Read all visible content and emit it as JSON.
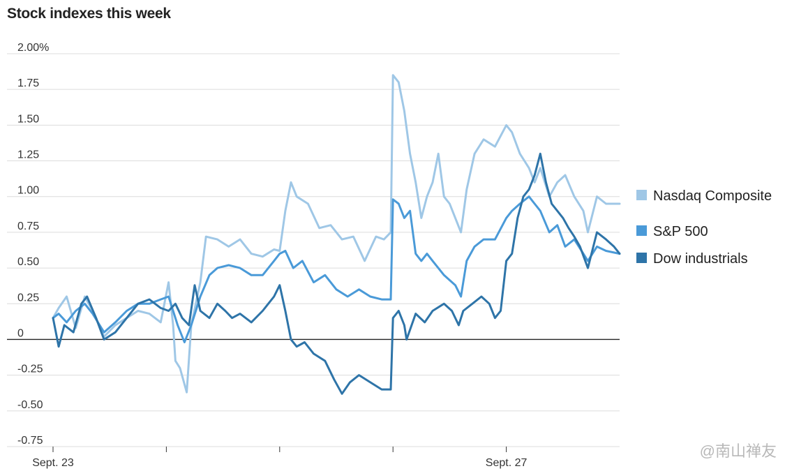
{
  "title": "Stock indexes this week",
  "watermark": "@南山禅友",
  "chart_data": {
    "type": "line",
    "title": "Stock indexes this week",
    "xlabel": "",
    "ylabel": "",
    "x_range": [
      0,
      5
    ],
    "ylim": [
      -0.75,
      2.0
    ],
    "y_ticks": [
      2.0,
      1.75,
      1.5,
      1.25,
      1.0,
      0.75,
      0.5,
      0.25,
      0,
      -0.25,
      -0.5,
      -0.75
    ],
    "y_tick_labels": [
      "2.00%",
      "1.75",
      "1.50",
      "1.25",
      "1.00",
      "0.75",
      "0.50",
      "0.25",
      "0",
      "-0.25",
      "-0.50",
      "-0.75"
    ],
    "x_ticks": [
      {
        "x": 0,
        "label": "Sept. 23"
      },
      {
        "x": 1,
        "label": ""
      },
      {
        "x": 2,
        "label": ""
      },
      {
        "x": 3,
        "label": ""
      },
      {
        "x": 4,
        "label": "Sept. 27"
      }
    ],
    "grid": true,
    "legend": "right",
    "series": [
      {
        "name": "Nasdaq Composite",
        "color": "#9fc7e6",
        "points": [
          [
            0,
            0.15
          ],
          [
            0.05,
            0.22
          ],
          [
            0.12,
            0.3
          ],
          [
            0.2,
            0.08
          ],
          [
            0.28,
            0.3
          ],
          [
            0.35,
            0.2
          ],
          [
            0.45,
            0.02
          ],
          [
            0.55,
            0.1
          ],
          [
            0.65,
            0.15
          ],
          [
            0.75,
            0.2
          ],
          [
            0.85,
            0.18
          ],
          [
            0.95,
            0.12
          ],
          [
            1.02,
            0.4
          ],
          [
            1.06,
            0.1
          ],
          [
            1.08,
            -0.15
          ],
          [
            1.12,
            -0.2
          ],
          [
            1.18,
            -0.37
          ],
          [
            1.22,
            0.1
          ],
          [
            1.3,
            0.4
          ],
          [
            1.35,
            0.72
          ],
          [
            1.45,
            0.7
          ],
          [
            1.55,
            0.65
          ],
          [
            1.65,
            0.7
          ],
          [
            1.75,
            0.6
          ],
          [
            1.85,
            0.58
          ],
          [
            1.95,
            0.63
          ],
          [
            2.0,
            0.62
          ],
          [
            2.05,
            0.9
          ],
          [
            2.1,
            1.1
          ],
          [
            2.15,
            1.0
          ],
          [
            2.25,
            0.95
          ],
          [
            2.35,
            0.78
          ],
          [
            2.45,
            0.8
          ],
          [
            2.55,
            0.7
          ],
          [
            2.65,
            0.72
          ],
          [
            2.75,
            0.55
          ],
          [
            2.85,
            0.72
          ],
          [
            2.92,
            0.7
          ],
          [
            2.98,
            0.75
          ],
          [
            3.0,
            1.85
          ],
          [
            3.05,
            1.8
          ],
          [
            3.1,
            1.6
          ],
          [
            3.15,
            1.3
          ],
          [
            3.2,
            1.1
          ],
          [
            3.25,
            0.85
          ],
          [
            3.3,
            1.0
          ],
          [
            3.35,
            1.1
          ],
          [
            3.4,
            1.3
          ],
          [
            3.45,
            1.0
          ],
          [
            3.5,
            0.95
          ],
          [
            3.55,
            0.85
          ],
          [
            3.6,
            0.75
          ],
          [
            3.65,
            1.05
          ],
          [
            3.72,
            1.3
          ],
          [
            3.8,
            1.4
          ],
          [
            3.9,
            1.35
          ],
          [
            4.0,
            1.5
          ],
          [
            4.05,
            1.45
          ],
          [
            4.12,
            1.3
          ],
          [
            4.2,
            1.2
          ],
          [
            4.25,
            1.1
          ],
          [
            4.3,
            1.2
          ],
          [
            4.38,
            1.0
          ],
          [
            4.45,
            1.1
          ],
          [
            4.52,
            1.15
          ],
          [
            4.6,
            1.0
          ],
          [
            4.68,
            0.9
          ],
          [
            4.72,
            0.75
          ],
          [
            4.8,
            1.0
          ],
          [
            4.88,
            0.95
          ],
          [
            5.0,
            0.95
          ]
        ]
      },
      {
        "name": "S&P 500",
        "color": "#4a9ad8",
        "points": [
          [
            0,
            0.15
          ],
          [
            0.05,
            0.18
          ],
          [
            0.12,
            0.12
          ],
          [
            0.2,
            0.2
          ],
          [
            0.28,
            0.25
          ],
          [
            0.35,
            0.18
          ],
          [
            0.45,
            0.05
          ],
          [
            0.55,
            0.12
          ],
          [
            0.65,
            0.2
          ],
          [
            0.75,
            0.25
          ],
          [
            0.85,
            0.25
          ],
          [
            0.95,
            0.28
          ],
          [
            1.02,
            0.3
          ],
          [
            1.06,
            0.2
          ],
          [
            1.1,
            0.1
          ],
          [
            1.16,
            -0.02
          ],
          [
            1.22,
            0.1
          ],
          [
            1.3,
            0.3
          ],
          [
            1.38,
            0.45
          ],
          [
            1.45,
            0.5
          ],
          [
            1.55,
            0.52
          ],
          [
            1.65,
            0.5
          ],
          [
            1.75,
            0.45
          ],
          [
            1.85,
            0.45
          ],
          [
            1.95,
            0.55
          ],
          [
            2.0,
            0.6
          ],
          [
            2.05,
            0.62
          ],
          [
            2.12,
            0.5
          ],
          [
            2.2,
            0.55
          ],
          [
            2.3,
            0.4
          ],
          [
            2.4,
            0.45
          ],
          [
            2.5,
            0.35
          ],
          [
            2.6,
            0.3
          ],
          [
            2.7,
            0.35
          ],
          [
            2.8,
            0.3
          ],
          [
            2.9,
            0.28
          ],
          [
            2.98,
            0.28
          ],
          [
            3.0,
            0.98
          ],
          [
            3.05,
            0.95
          ],
          [
            3.1,
            0.85
          ],
          [
            3.15,
            0.9
          ],
          [
            3.2,
            0.6
          ],
          [
            3.25,
            0.55
          ],
          [
            3.3,
            0.6
          ],
          [
            3.35,
            0.55
          ],
          [
            3.45,
            0.45
          ],
          [
            3.55,
            0.38
          ],
          [
            3.6,
            0.3
          ],
          [
            3.65,
            0.55
          ],
          [
            3.72,
            0.65
          ],
          [
            3.8,
            0.7
          ],
          [
            3.9,
            0.7
          ],
          [
            4.0,
            0.85
          ],
          [
            4.05,
            0.9
          ],
          [
            4.12,
            0.95
          ],
          [
            4.2,
            1.0
          ],
          [
            4.25,
            0.95
          ],
          [
            4.3,
            0.9
          ],
          [
            4.38,
            0.75
          ],
          [
            4.45,
            0.8
          ],
          [
            4.52,
            0.65
          ],
          [
            4.6,
            0.7
          ],
          [
            4.68,
            0.6
          ],
          [
            4.72,
            0.55
          ],
          [
            4.8,
            0.65
          ],
          [
            4.88,
            0.62
          ],
          [
            5.0,
            0.6
          ]
        ]
      },
      {
        "name": "Dow industrials",
        "color": "#2e74a8",
        "points": [
          [
            0,
            0.15
          ],
          [
            0.05,
            -0.05
          ],
          [
            0.1,
            0.1
          ],
          [
            0.18,
            0.05
          ],
          [
            0.25,
            0.25
          ],
          [
            0.3,
            0.3
          ],
          [
            0.38,
            0.15
          ],
          [
            0.45,
            0.0
          ],
          [
            0.55,
            0.05
          ],
          [
            0.65,
            0.15
          ],
          [
            0.75,
            0.25
          ],
          [
            0.85,
            0.28
          ],
          [
            0.95,
            0.22
          ],
          [
            1.02,
            0.2
          ],
          [
            1.08,
            0.25
          ],
          [
            1.14,
            0.15
          ],
          [
            1.2,
            0.1
          ],
          [
            1.25,
            0.38
          ],
          [
            1.3,
            0.2
          ],
          [
            1.38,
            0.15
          ],
          [
            1.45,
            0.25
          ],
          [
            1.52,
            0.2
          ],
          [
            1.58,
            0.15
          ],
          [
            1.65,
            0.18
          ],
          [
            1.75,
            0.12
          ],
          [
            1.85,
            0.2
          ],
          [
            1.95,
            0.3
          ],
          [
            2.0,
            0.38
          ],
          [
            2.05,
            0.2
          ],
          [
            2.1,
            0.0
          ],
          [
            2.15,
            -0.05
          ],
          [
            2.22,
            -0.02
          ],
          [
            2.3,
            -0.1
          ],
          [
            2.4,
            -0.15
          ],
          [
            2.48,
            -0.28
          ],
          [
            2.55,
            -0.38
          ],
          [
            2.62,
            -0.3
          ],
          [
            2.7,
            -0.25
          ],
          [
            2.8,
            -0.3
          ],
          [
            2.9,
            -0.35
          ],
          [
            2.98,
            -0.35
          ],
          [
            3.0,
            0.15
          ],
          [
            3.05,
            0.2
          ],
          [
            3.1,
            0.1
          ],
          [
            3.12,
            0.0
          ],
          [
            3.2,
            0.18
          ],
          [
            3.28,
            0.12
          ],
          [
            3.35,
            0.2
          ],
          [
            3.45,
            0.25
          ],
          [
            3.52,
            0.2
          ],
          [
            3.58,
            0.1
          ],
          [
            3.62,
            0.2
          ],
          [
            3.7,
            0.25
          ],
          [
            3.78,
            0.3
          ],
          [
            3.85,
            0.25
          ],
          [
            3.9,
            0.15
          ],
          [
            3.95,
            0.2
          ],
          [
            4.0,
            0.55
          ],
          [
            4.05,
            0.6
          ],
          [
            4.1,
            0.85
          ],
          [
            4.15,
            1.0
          ],
          [
            4.2,
            1.05
          ],
          [
            4.25,
            1.15
          ],
          [
            4.3,
            1.3
          ],
          [
            4.35,
            1.1
          ],
          [
            4.4,
            0.95
          ],
          [
            4.45,
            0.9
          ],
          [
            4.5,
            0.85
          ],
          [
            4.55,
            0.78
          ],
          [
            4.6,
            0.72
          ],
          [
            4.65,
            0.65
          ],
          [
            4.72,
            0.5
          ],
          [
            4.8,
            0.75
          ],
          [
            4.88,
            0.7
          ],
          [
            4.95,
            0.65
          ],
          [
            5.0,
            0.6
          ]
        ]
      }
    ]
  }
}
